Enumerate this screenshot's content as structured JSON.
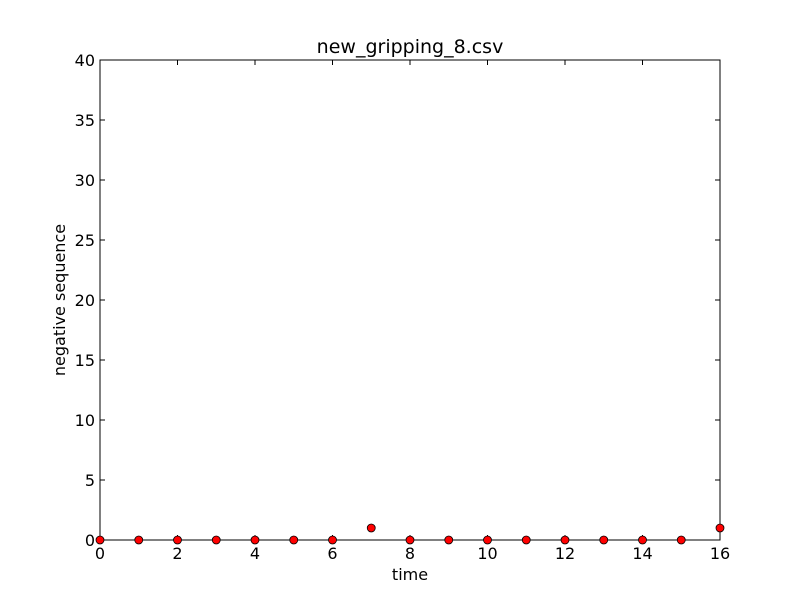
{
  "chart_data": {
    "type": "scatter",
    "title": "new_gripping_8.csv",
    "xlabel": "time",
    "ylabel": "negative sequence",
    "xlim": [
      0,
      16
    ],
    "ylim": [
      0,
      40
    ],
    "xticks": [
      0,
      2,
      4,
      6,
      8,
      10,
      12,
      14,
      16
    ],
    "yticks": [
      0,
      5,
      10,
      15,
      20,
      25,
      30,
      35,
      40
    ],
    "grid": false,
    "legend": "none",
    "marker_color": "#ff0000",
    "marker_edge_color": "#000000",
    "series": [
      {
        "x": [
          0,
          1,
          2,
          3,
          4,
          5,
          6,
          7,
          8,
          9,
          10,
          11,
          12,
          13,
          14,
          15,
          16
        ],
        "y": [
          0,
          0,
          0,
          0,
          0,
          0,
          0,
          1,
          0,
          0,
          0,
          0,
          0,
          0,
          0,
          0,
          1
        ]
      }
    ]
  }
}
